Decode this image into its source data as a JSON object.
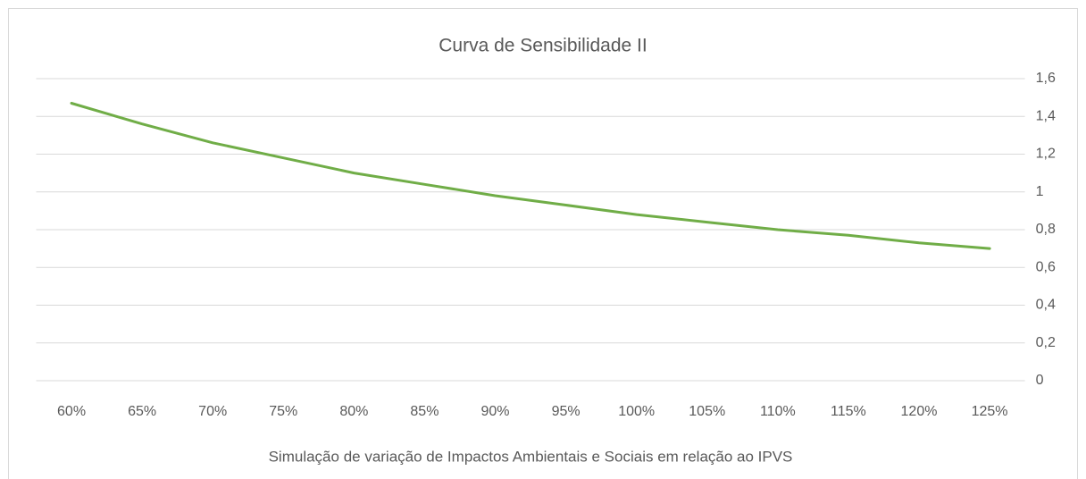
{
  "chart_data": {
    "type": "line",
    "title": "Curva de Sensibilidade  II",
    "x_label": "Simulação de variação de Impactos Ambientais e Sociais em relação ao IPVS",
    "categories": [
      "60%",
      "65%",
      "70%",
      "75%",
      "80%",
      "85%",
      "90%",
      "95%",
      "100%",
      "105%",
      "110%",
      "115%",
      "120%",
      "125%"
    ],
    "series": [
      {
        "color": "#70ad47",
        "values": [
          1.47,
          1.36,
          1.26,
          1.18,
          1.1,
          1.04,
          0.98,
          0.93,
          0.88,
          0.84,
          0.8,
          0.77,
          0.73,
          0.7
        ]
      }
    ],
    "ylim": [
      0,
      1.6
    ],
    "yticks": [
      0,
      {
        "value": 0.2,
        "label": "0,2"
      },
      {
        "value": 0.4,
        "label": "0,4"
      },
      {
        "value": 0.6,
        "label": "0,6"
      },
      {
        "value": 0.8,
        "label": "0,8"
      },
      1,
      {
        "value": 1.2,
        "label": "1,2"
      },
      {
        "value": 1.4,
        "label": "1,4"
      },
      {
        "value": 1.6,
        "label": "1,6"
      }
    ],
    "y_axis_side": "right",
    "grid": true
  }
}
